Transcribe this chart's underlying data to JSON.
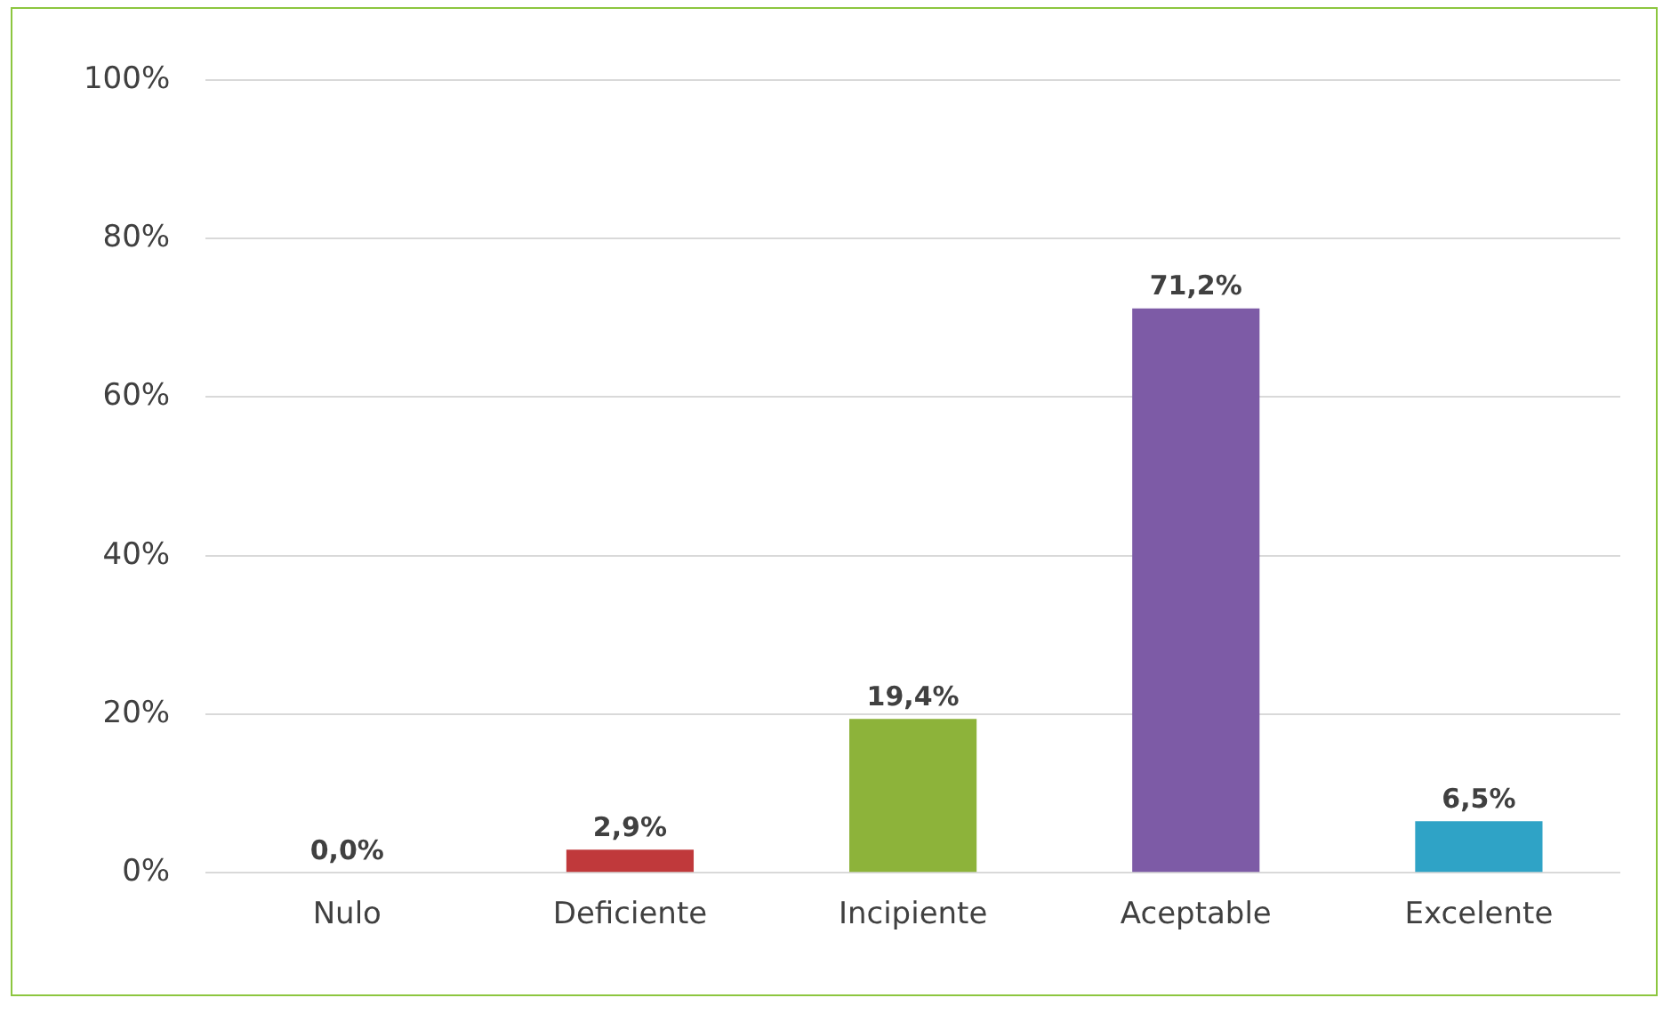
{
  "chart_data": {
    "type": "bar",
    "categories": [
      "Nulo",
      "Deficiente",
      "Incipiente",
      "Aceptable",
      "Excelente"
    ],
    "values": [
      0,
      2.9,
      19.4,
      71.2,
      6.5
    ],
    "colors": [
      "#2e5c9a",
      "#c0393b",
      "#8db33a",
      "#7d5ba6",
      "#2fa3c6"
    ],
    "value_labels": [
      "0,0%",
      "2,9%",
      "19,4%",
      "71,2%",
      "6,5%"
    ],
    "ylim": [
      0,
      100
    ],
    "yticks": [
      {
        "value": 0,
        "label": "0%"
      },
      {
        "value": 20,
        "label": "20%"
      },
      {
        "value": 40,
        "label": "40%"
      },
      {
        "value": 60,
        "label": "60%"
      },
      {
        "value": 80,
        "label": "80%"
      },
      {
        "value": 100,
        "label": "100%"
      }
    ],
    "grid": "y",
    "legend": false
  }
}
